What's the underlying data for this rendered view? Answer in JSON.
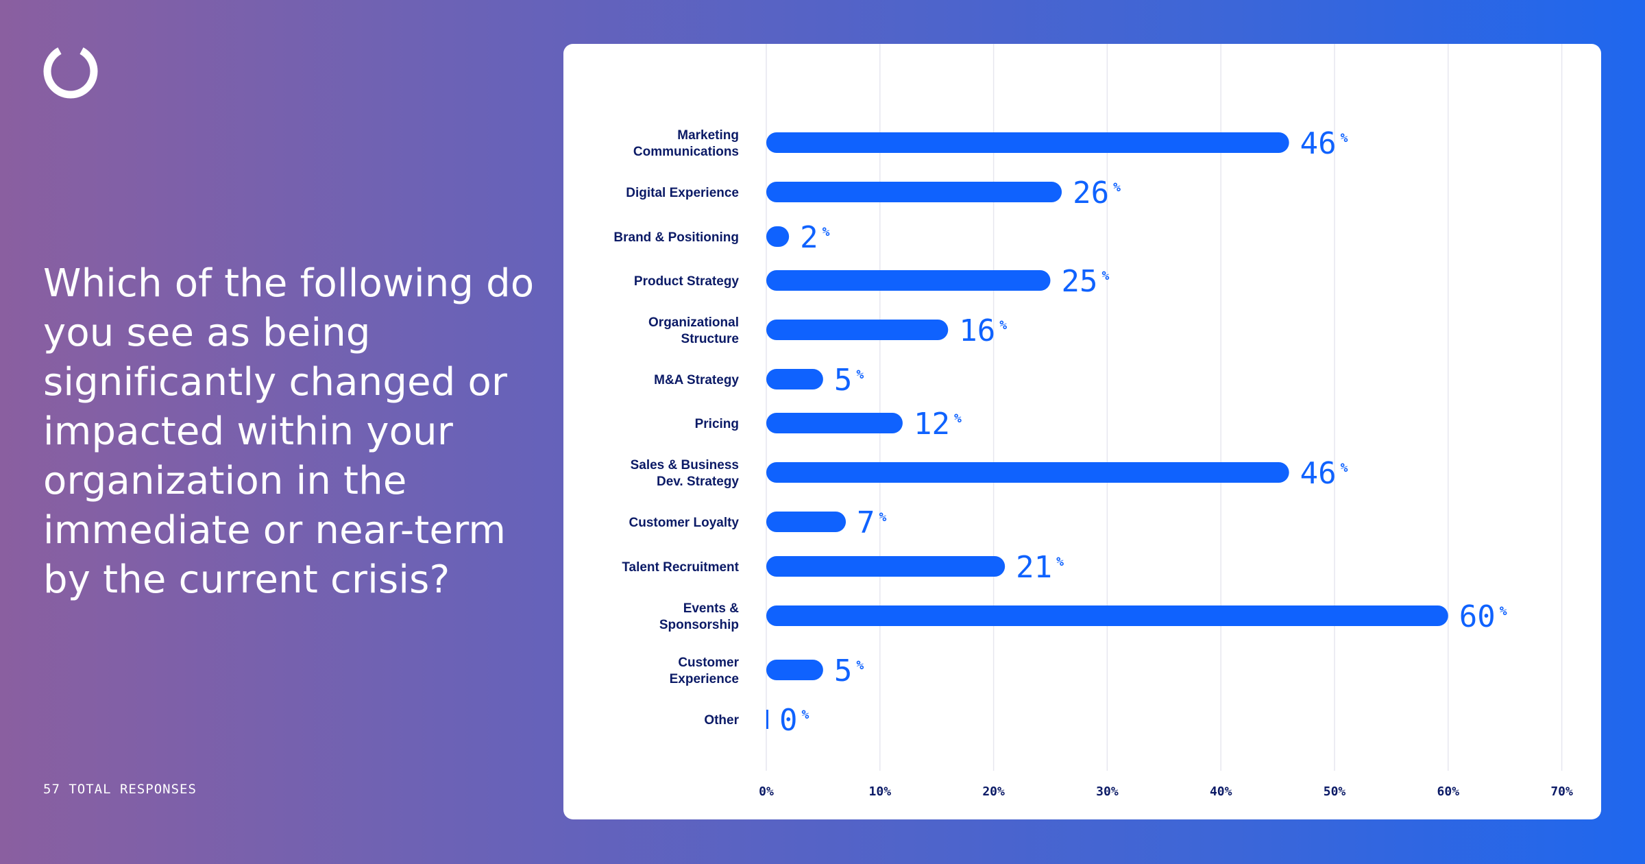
{
  "question": "Which of the following do you see as being significantly changed or impacted within your organization in the immediate or near-term by the current crisis?",
  "footer_text": "57 TOTAL RESPONSES",
  "icon": "ring-logo-icon",
  "colors": {
    "bar": "#0f62fe",
    "label": "#0b1a66",
    "value": "#0f62fe",
    "grid": "#e6e6ef"
  },
  "chart_data": {
    "type": "bar",
    "orientation": "horizontal",
    "categories": [
      "Marketing\nCommunications",
      "Digital Experience",
      "Brand & Positioning",
      "Product Strategy",
      "Organizational\nStructure",
      "M&A Strategy",
      "Pricing",
      "Sales & Business\nDev. Strategy",
      "Customer Loyalty",
      "Talent Recruitment",
      "Events &\nSponsorship",
      "Customer\nExperience",
      "Other"
    ],
    "values": [
      46,
      26,
      2,
      25,
      16,
      5,
      12,
      46,
      7,
      21,
      60,
      5,
      0
    ],
    "value_suffix": "%",
    "xlim": [
      0,
      70
    ],
    "xticks": [
      "0%",
      "10%",
      "20%",
      "30%",
      "40%",
      "50%",
      "60%",
      "70%"
    ],
    "grid": true
  }
}
